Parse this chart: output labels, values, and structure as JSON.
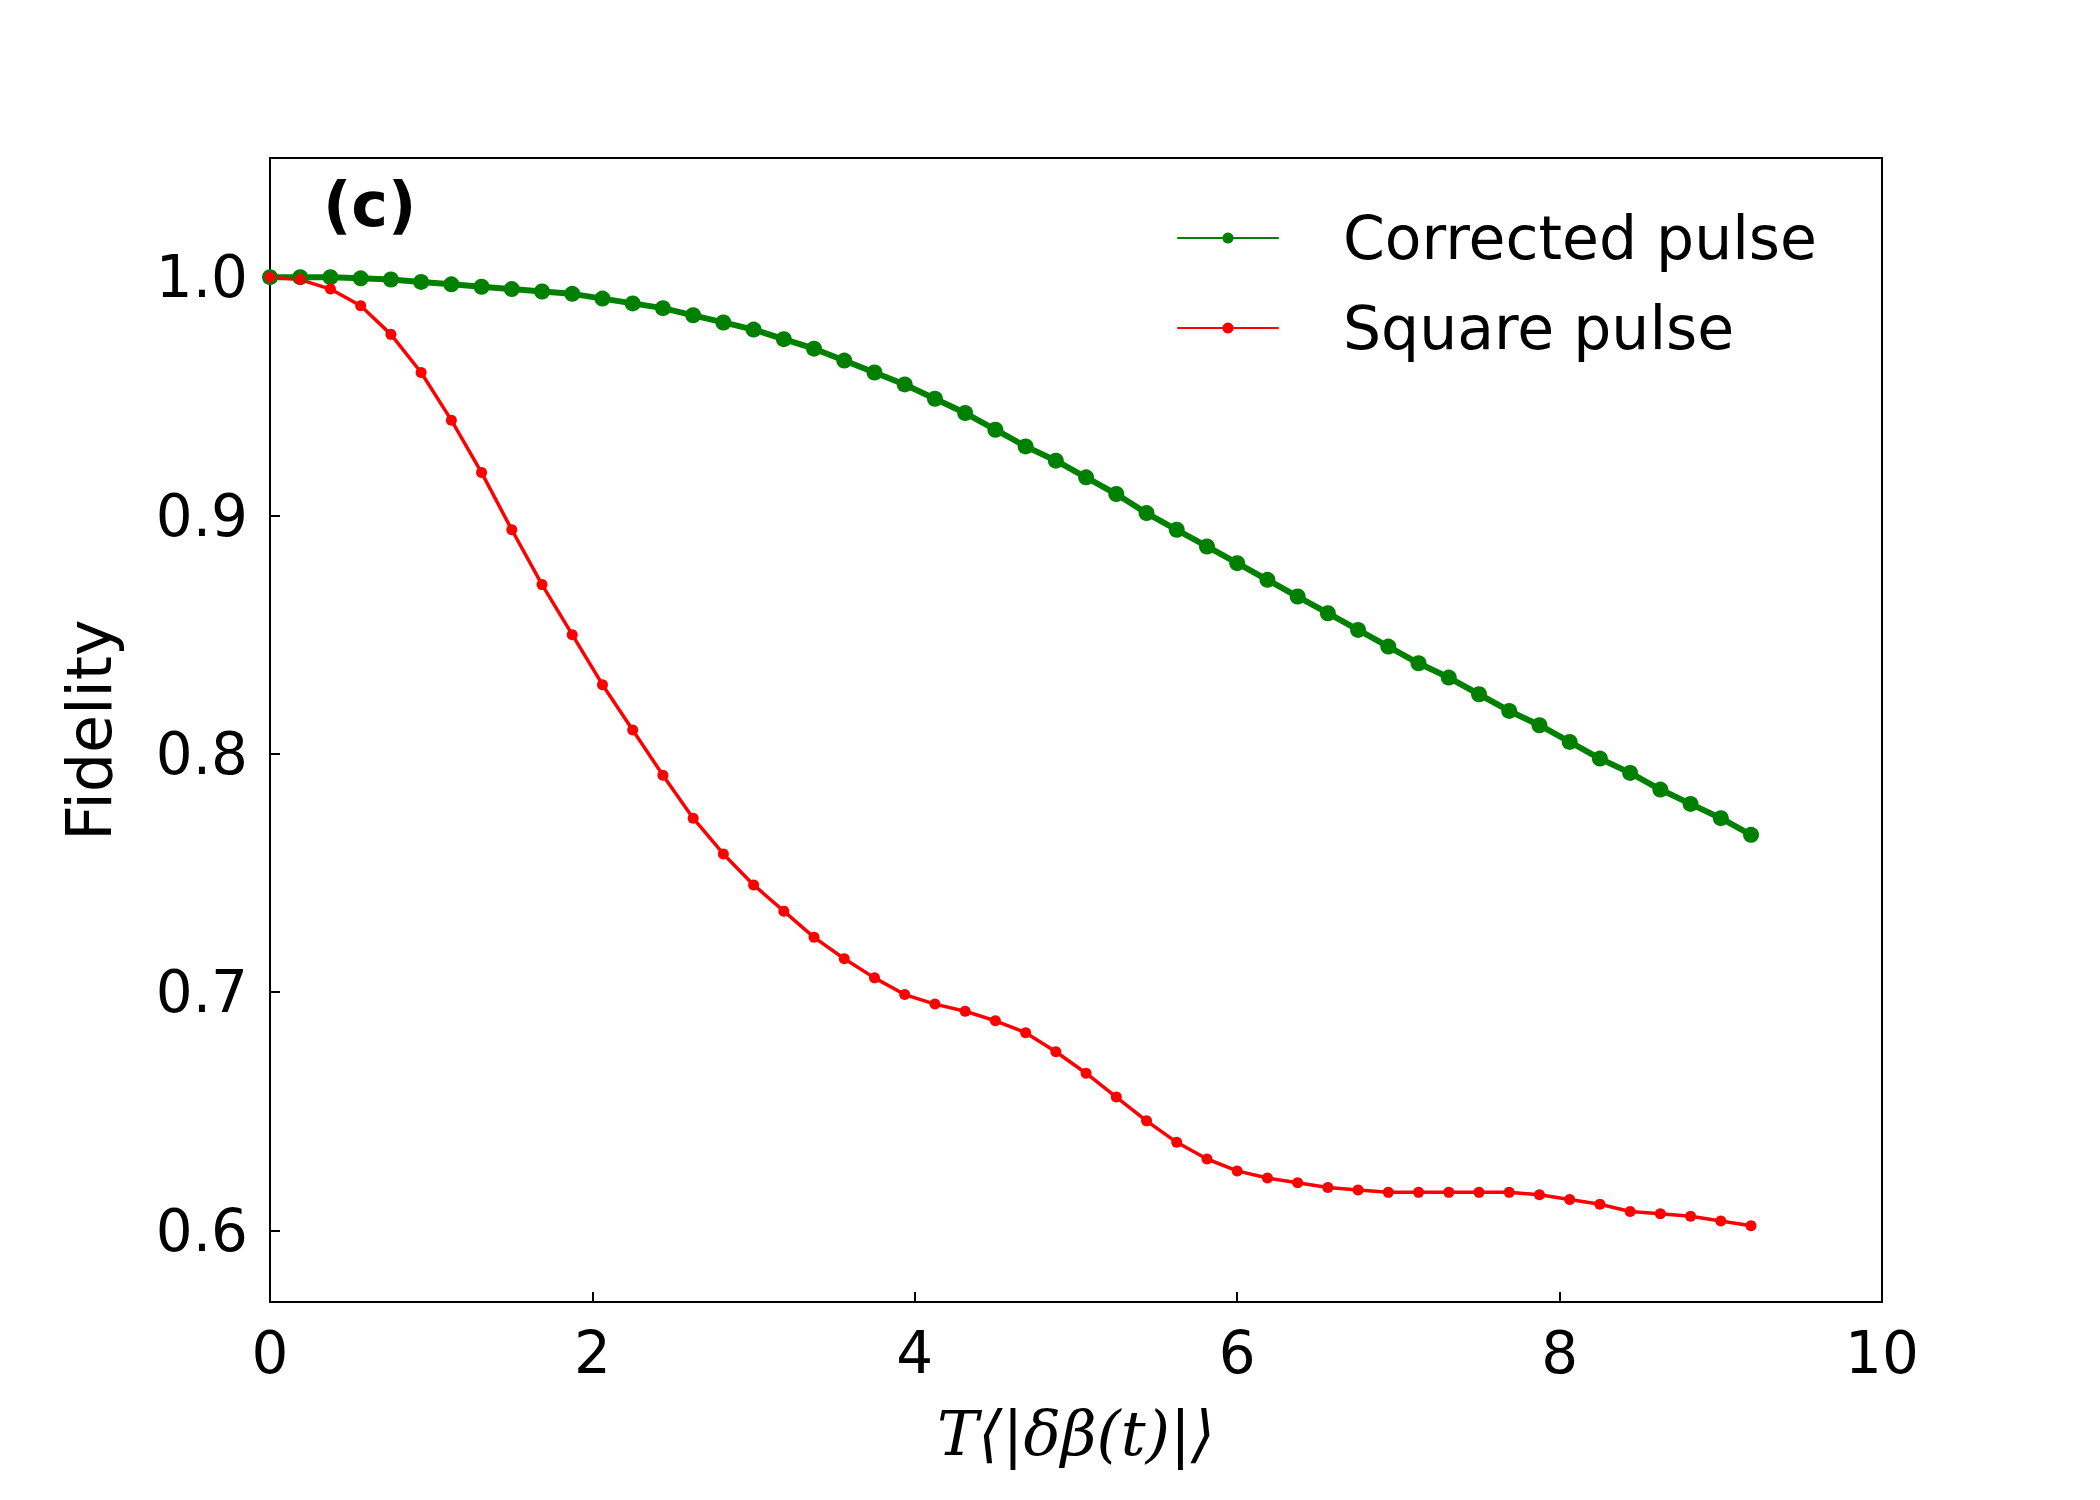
{
  "chart_data": {
    "type": "line",
    "xlabel": "T⟨|δβ(t)|⟩",
    "ylabel": "Fidelity",
    "annotations": [
      "(c)"
    ],
    "xlim": [
      0,
      10
    ],
    "xticks": [
      0,
      2,
      4,
      6,
      8,
      10
    ],
    "ylim": [
      0.57,
      1.05
    ],
    "yticks": [
      0.6,
      0.7,
      0.8,
      0.9,
      {
        "value": 1,
        "label": "1.0"
      }
    ],
    "grid": false,
    "legend": "top right",
    "marker": "circle",
    "line_style": "solid",
    "x": [
      0,
      0.1875,
      0.375,
      0.5625,
      0.75,
      0.9375,
      1.125,
      1.3125,
      1.5,
      1.6875,
      1.875,
      2.0625,
      2.25,
      2.4375,
      2.625,
      2.8125,
      3,
      3.1875,
      3.375,
      3.5625,
      3.75,
      3.9375,
      4.125,
      4.3125,
      4.5,
      4.6875,
      4.875,
      5.0625,
      5.25,
      5.4375,
      5.625,
      5.8125,
      6,
      6.1875,
      6.375,
      6.5625,
      6.75,
      6.9375,
      7.125,
      7.3125,
      7.5,
      7.6875,
      7.875,
      8.0625,
      8.25,
      8.4375,
      8.625,
      8.8125,
      9,
      9.1875
    ],
    "series": [
      {
        "name": "Corrected pulse",
        "color": "#008000",
        "values": [
          1,
          1,
          1,
          0.9995,
          0.999,
          0.998,
          0.997,
          0.996,
          0.995,
          0.994,
          0.993,
          0.991,
          0.989,
          0.987,
          0.984,
          0.981,
          0.978,
          0.974,
          0.97,
          0.965,
          0.96,
          0.955,
          0.949,
          0.943,
          0.936,
          0.929,
          0.923,
          0.916,
          0.909,
          0.901,
          0.894,
          0.887,
          0.88,
          0.873,
          0.866,
          0.859,
          0.852,
          0.845,
          0.838,
          0.832,
          0.825,
          0.818,
          0.812,
          0.805,
          0.798,
          0.792,
          0.785,
          0.779,
          0.773,
          0.766
        ]
      },
      {
        "name": "Square pulse",
        "color": "#ff0000",
        "values": [
          1,
          0.999,
          0.995,
          0.988,
          0.976,
          0.96,
          0.94,
          0.918,
          0.894,
          0.871,
          0.85,
          0.829,
          0.81,
          0.791,
          0.773,
          0.758,
          0.745,
          0.734,
          0.723,
          0.714,
          0.706,
          0.699,
          0.695,
          0.692,
          0.688,
          0.683,
          0.675,
          0.666,
          0.656,
          0.646,
          0.637,
          0.63,
          0.625,
          0.622,
          0.62,
          0.618,
          0.617,
          0.616,
          0.616,
          0.616,
          0.616,
          0.616,
          0.615,
          0.613,
          0.611,
          0.608,
          0.607,
          0.606,
          0.604,
          0.602
        ]
      }
    ]
  }
}
